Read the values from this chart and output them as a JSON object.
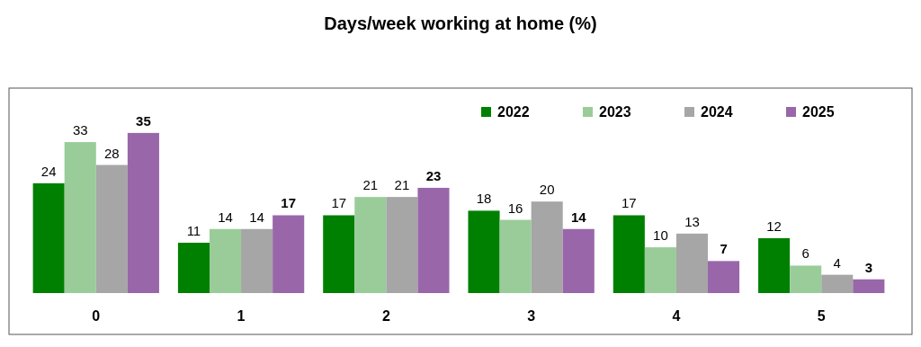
{
  "chart_data": {
    "type": "bar",
    "title": "Days/week working at home (%)",
    "categories": [
      "0",
      "1",
      "2",
      "3",
      "4",
      "5"
    ],
    "series": [
      {
        "name": "2022",
        "color": "#008000",
        "values": [
          24,
          11,
          17,
          18,
          17,
          12
        ]
      },
      {
        "name": "2023",
        "color": "#99cc99",
        "values": [
          33,
          14,
          21,
          16,
          10,
          6
        ]
      },
      {
        "name": "2024",
        "color": "#a6a6a6",
        "values": [
          28,
          14,
          21,
          20,
          13,
          4
        ]
      },
      {
        "name": "2025",
        "color": "#9966aa",
        "values": [
          35,
          17,
          23,
          14,
          7,
          3
        ]
      }
    ],
    "data_labels": true,
    "legend": "top right",
    "grid": false,
    "tick_labels": "x"
  }
}
